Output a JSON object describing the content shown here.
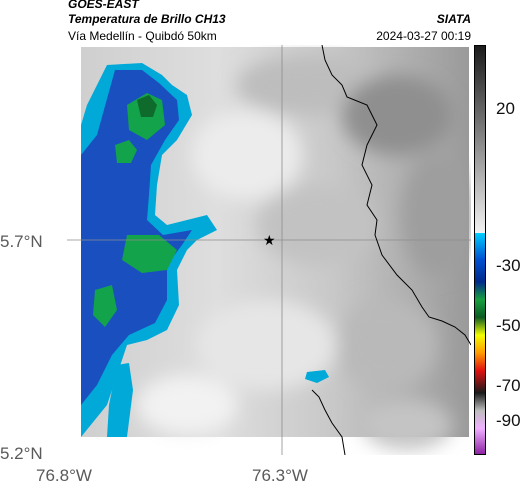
{
  "header": {
    "satellite": "GOES-EAST",
    "product": "Temperatura de Brillo CH13",
    "source": "SIATA",
    "region": "Vía Medellín - Quibdó 50km",
    "timestamp": "2024-03-27 00:19"
  },
  "axes": {
    "lat_labels": [
      "5.7°N",
      "5.2°N"
    ],
    "lon_labels": [
      "76.8°W",
      "76.3°W"
    ]
  },
  "map": {
    "marker_icon": "star-icon",
    "border_color": "#000000",
    "gridline_color": "#8c8c8c"
  },
  "colorbar": {
    "tick_labels": [
      "20",
      "-30",
      "-50",
      "-70",
      "-90"
    ]
  }
}
